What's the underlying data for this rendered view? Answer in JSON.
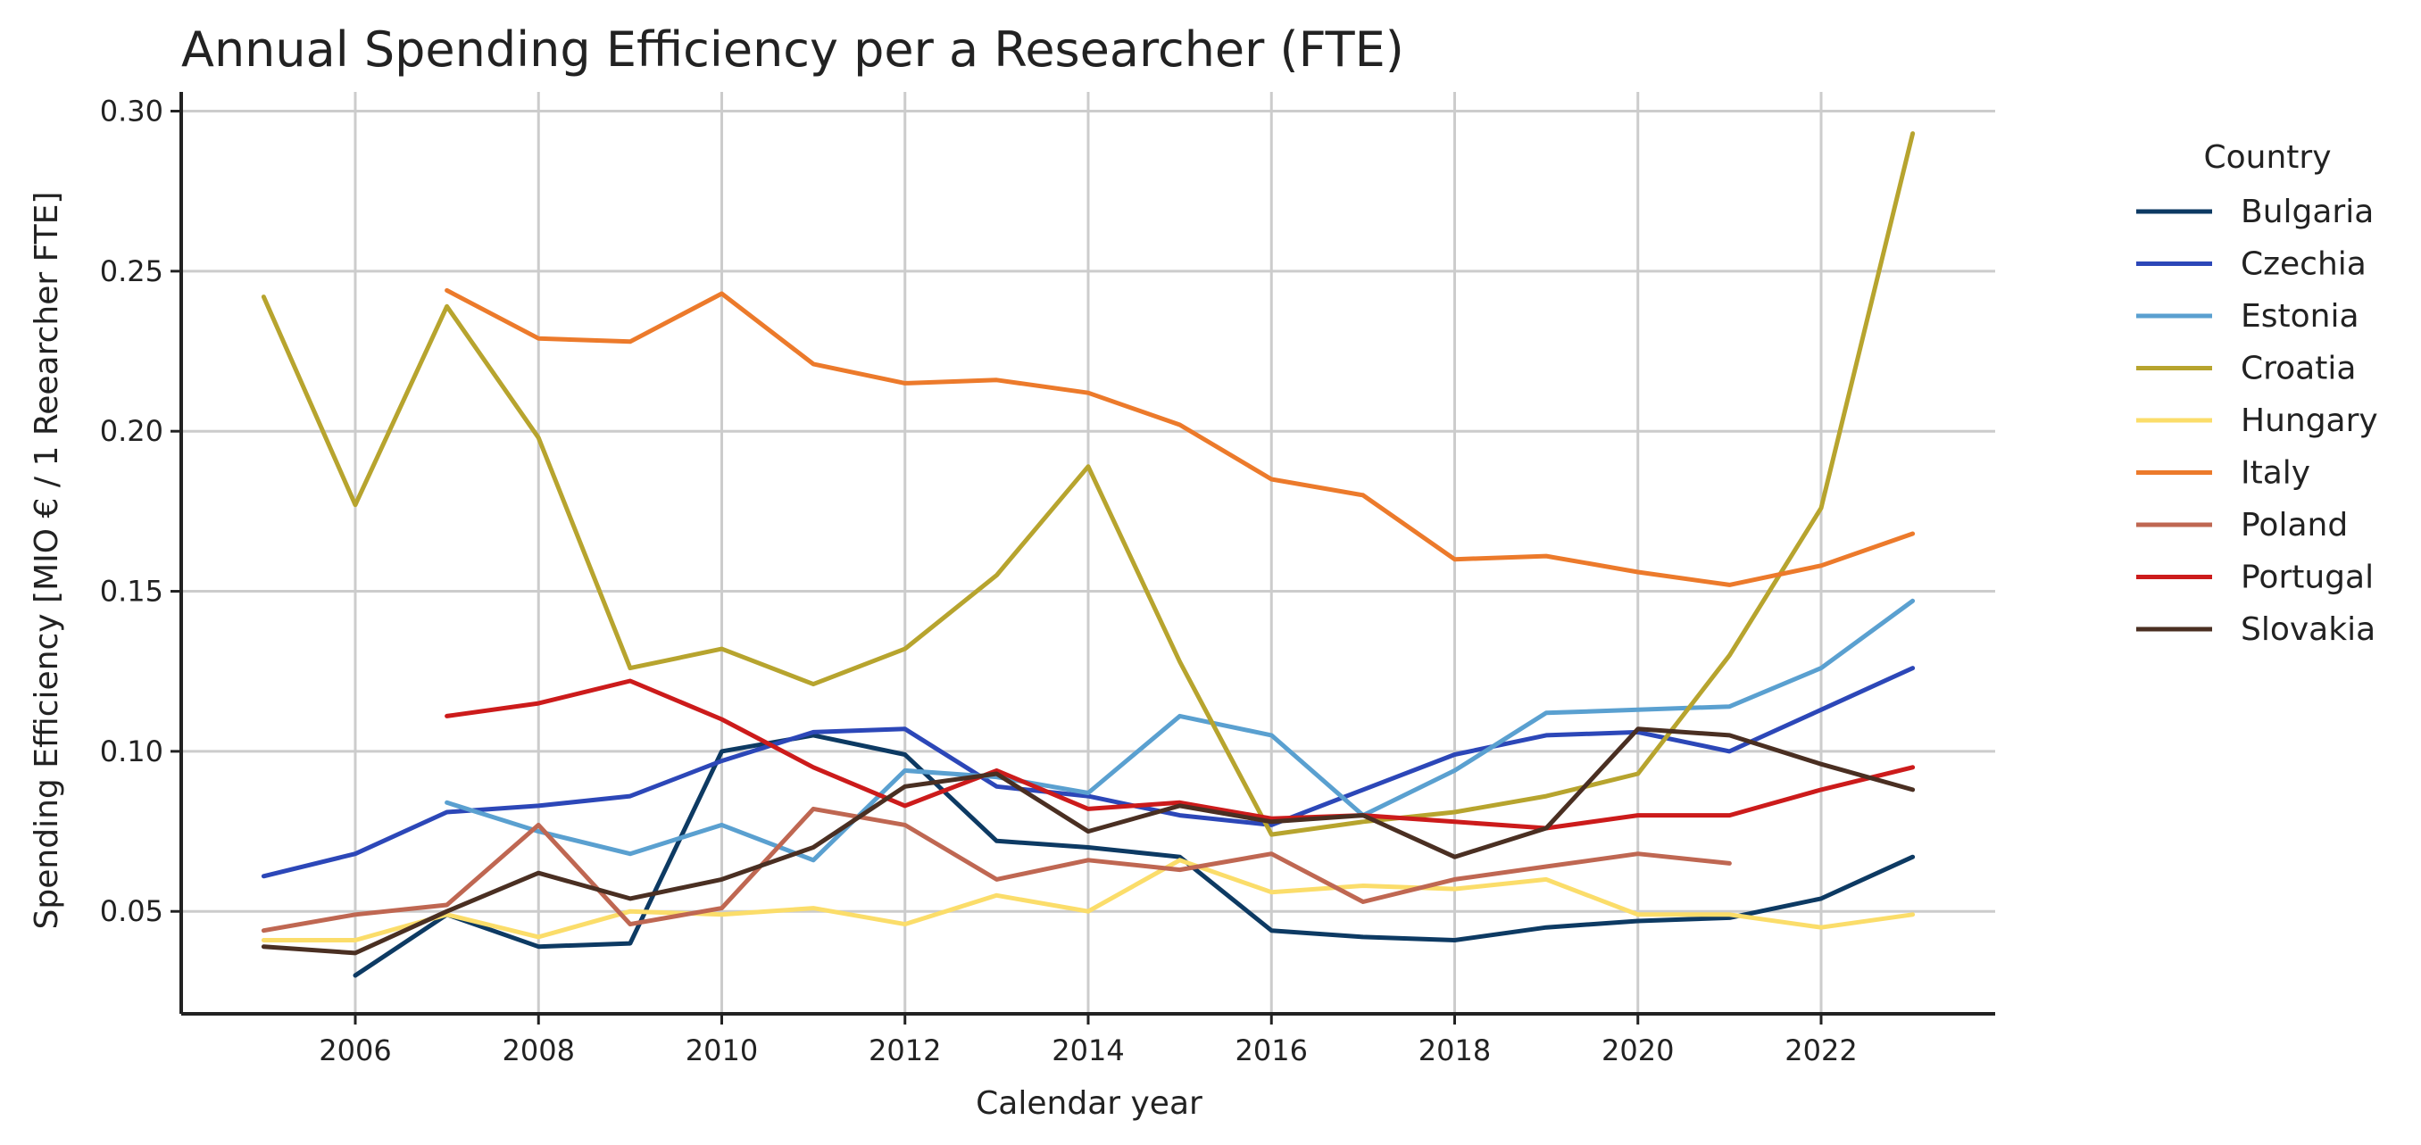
{
  "chart_data": {
    "type": "line",
    "title": "Annual Spending Efficiency per a Researcher (FTE)",
    "xlabel": "Calendar year",
    "ylabel": "Spending Efficiency [MIO € / 1 Reearcher FTE]",
    "xlim": [
      2004.1,
      2023.9
    ],
    "ylim": [
      0.018,
      0.306
    ],
    "x_ticks": [
      2006,
      2008,
      2010,
      2012,
      2014,
      2016,
      2018,
      2020,
      2022
    ],
    "y_ticks": [
      0.05,
      0.1,
      0.15,
      0.2,
      0.25,
      0.3
    ],
    "y_tick_labels": [
      "0.05",
      "0.10",
      "0.15",
      "0.20",
      "0.25",
      "0.30"
    ],
    "grid": true,
    "legend": {
      "title": "Country",
      "placement": "outside-right"
    },
    "series": [
      {
        "name": "Bulgaria",
        "color": "#0d3a63",
        "x": [
          2006,
          2007,
          2008,
          2009,
          2010,
          2011,
          2012,
          2013,
          2014,
          2015,
          2016,
          2017,
          2018,
          2019,
          2020,
          2021,
          2022,
          2023
        ],
        "y": [
          0.03,
          0.049,
          0.039,
          0.04,
          0.1,
          0.105,
          0.099,
          0.072,
          0.07,
          0.067,
          0.044,
          0.042,
          0.041,
          0.045,
          0.047,
          0.048,
          0.054,
          0.067
        ]
      },
      {
        "name": "Czechia",
        "color": "#2c47b8",
        "x": [
          2005,
          2006,
          2007,
          2008,
          2009,
          2010,
          2011,
          2012,
          2013,
          2014,
          2015,
          2016,
          2017,
          2018,
          2019,
          2020,
          2021,
          2022,
          2023
        ],
        "y": [
          0.061,
          0.068,
          0.081,
          0.083,
          0.086,
          0.097,
          0.106,
          0.107,
          0.089,
          0.086,
          0.08,
          0.077,
          0.088,
          0.099,
          0.105,
          0.106,
          0.1,
          0.113,
          0.126
        ]
      },
      {
        "name": "Estonia",
        "color": "#5aa0d0",
        "x": [
          2007,
          2008,
          2009,
          2010,
          2011,
          2012,
          2013,
          2014,
          2015,
          2016,
          2017,
          2018,
          2019,
          2020,
          2021,
          2022,
          2023
        ],
        "y": [
          0.084,
          0.075,
          0.068,
          0.077,
          0.066,
          0.094,
          0.092,
          0.087,
          0.111,
          0.105,
          0.08,
          0.094,
          0.112,
          0.113,
          0.114,
          0.126,
          0.147
        ]
      },
      {
        "name": "Croatia",
        "color": "#b7a42e",
        "x": [
          2005,
          2006,
          2007,
          2008,
          2009,
          2010,
          2011,
          2012,
          2013,
          2014,
          2015,
          2016,
          2017,
          2018,
          2019,
          2020,
          2021,
          2022,
          2023
        ],
        "y": [
          0.242,
          0.177,
          0.239,
          0.198,
          0.126,
          0.132,
          0.121,
          0.132,
          0.155,
          0.189,
          0.128,
          0.074,
          0.078,
          0.081,
          0.086,
          0.093,
          0.13,
          0.176,
          0.293
        ]
      },
      {
        "name": "Hungary",
        "color": "#fbdd6a",
        "x": [
          2005,
          2006,
          2007,
          2008,
          2009,
          2010,
          2011,
          2012,
          2013,
          2014,
          2015,
          2016,
          2017,
          2018,
          2019,
          2020,
          2021,
          2022,
          2023
        ],
        "y": [
          0.041,
          0.041,
          0.049,
          0.042,
          0.05,
          0.049,
          0.051,
          0.046,
          0.055,
          0.05,
          0.066,
          0.056,
          0.058,
          0.057,
          0.06,
          0.049,
          0.049,
          0.045,
          0.049
        ]
      },
      {
        "name": "Italy",
        "color": "#ec7a2b",
        "x": [
          2007,
          2008,
          2009,
          2010,
          2011,
          2012,
          2013,
          2014,
          2015,
          2016,
          2017,
          2018,
          2019,
          2020,
          2021,
          2022,
          2023
        ],
        "y": [
          0.244,
          0.229,
          0.228,
          0.243,
          0.221,
          0.215,
          0.216,
          0.212,
          0.202,
          0.185,
          0.18,
          0.16,
          0.161,
          0.156,
          0.152,
          0.158,
          0.168
        ]
      },
      {
        "name": "Poland",
        "color": "#bf6752",
        "x": [
          2005,
          2006,
          2007,
          2008,
          2009,
          2010,
          2011,
          2012,
          2013,
          2014,
          2015,
          2016,
          2017,
          2018,
          2019,
          2020,
          2021
        ],
        "y": [
          0.044,
          0.049,
          0.052,
          0.077,
          0.046,
          0.051,
          0.082,
          0.077,
          0.06,
          0.066,
          0.063,
          0.068,
          0.053,
          0.06,
          0.064,
          0.068,
          0.065
        ]
      },
      {
        "name": "Portugal",
        "color": "#cc1b1b",
        "x": [
          2007,
          2008,
          2009,
          2010,
          2011,
          2012,
          2013,
          2014,
          2015,
          2016,
          2017,
          2018,
          2019,
          2020,
          2021,
          2022,
          2023
        ],
        "y": [
          0.111,
          0.115,
          0.122,
          0.11,
          0.095,
          0.083,
          0.094,
          0.082,
          0.084,
          0.079,
          0.08,
          0.078,
          0.076,
          0.08,
          0.08,
          0.088,
          0.095
        ]
      },
      {
        "name": "Slovakia",
        "color": "#4a2f22",
        "x": [
          2005,
          2006,
          2007,
          2008,
          2009,
          2010,
          2011,
          2012,
          2013,
          2014,
          2015,
          2016,
          2017,
          2018,
          2019,
          2020,
          2021,
          2022,
          2023
        ],
        "y": [
          0.039,
          0.037,
          0.05,
          0.062,
          0.054,
          0.06,
          0.07,
          0.089,
          0.093,
          0.075,
          0.083,
          0.078,
          0.08,
          0.067,
          0.076,
          0.107,
          0.105,
          0.096,
          0.088
        ]
      }
    ]
  }
}
